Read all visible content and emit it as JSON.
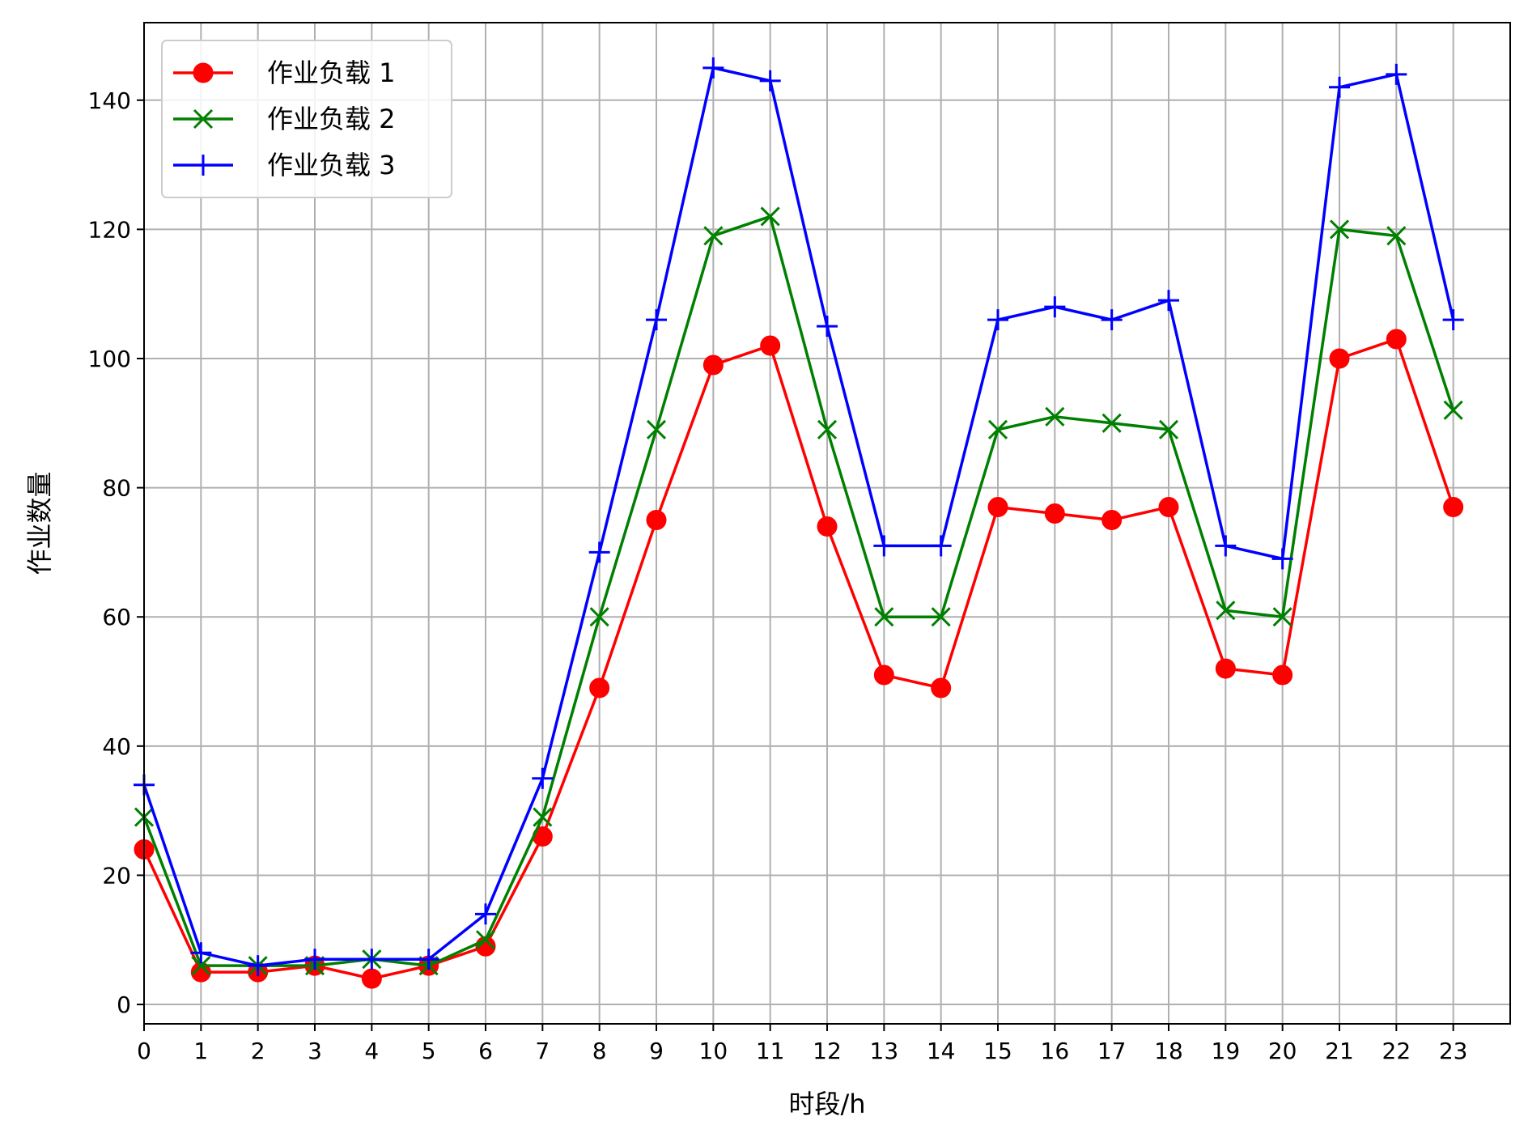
{
  "chart_data": {
    "type": "line",
    "title": "",
    "xlabel": "时段/h",
    "ylabel": "作业数量",
    "xlim": [
      0,
      24
    ],
    "ylim": [
      -3,
      152
    ],
    "x": [
      0,
      1,
      2,
      3,
      4,
      5,
      6,
      7,
      8,
      9,
      10,
      11,
      12,
      13,
      14,
      15,
      16,
      17,
      18,
      19,
      20,
      21,
      22,
      23
    ],
    "x_ticks": [
      0,
      1,
      2,
      3,
      4,
      5,
      6,
      7,
      8,
      9,
      10,
      11,
      12,
      13,
      14,
      15,
      16,
      17,
      18,
      19,
      20,
      21,
      22,
      23
    ],
    "y_ticks": [
      0,
      20,
      40,
      60,
      80,
      100,
      120,
      140
    ],
    "grid": true,
    "legend_position": "top-left",
    "series": [
      {
        "name": "作业负载 1",
        "color": "#ff0000",
        "marker": "circle",
        "values": [
          24,
          5,
          5,
          6,
          4,
          6,
          9,
          26,
          49,
          75,
          99,
          102,
          74,
          51,
          49,
          77,
          76,
          75,
          77,
          52,
          51,
          100,
          103,
          77
        ]
      },
      {
        "name": "作业负载 2",
        "color": "#008000",
        "marker": "x",
        "values": [
          29,
          6,
          6,
          6,
          7,
          6,
          10,
          29,
          60,
          89,
          119,
          122,
          89,
          60,
          60,
          89,
          91,
          90,
          89,
          61,
          60,
          120,
          119,
          92
        ]
      },
      {
        "name": "作业负载 3",
        "color": "#0000ff",
        "marker": "plus",
        "values": [
          34,
          8,
          6,
          7,
          7,
          7,
          14,
          35,
          70,
          106,
          145,
          143,
          105,
          71,
          71,
          106,
          108,
          106,
          109,
          71,
          69,
          142,
          144,
          106
        ]
      }
    ]
  }
}
